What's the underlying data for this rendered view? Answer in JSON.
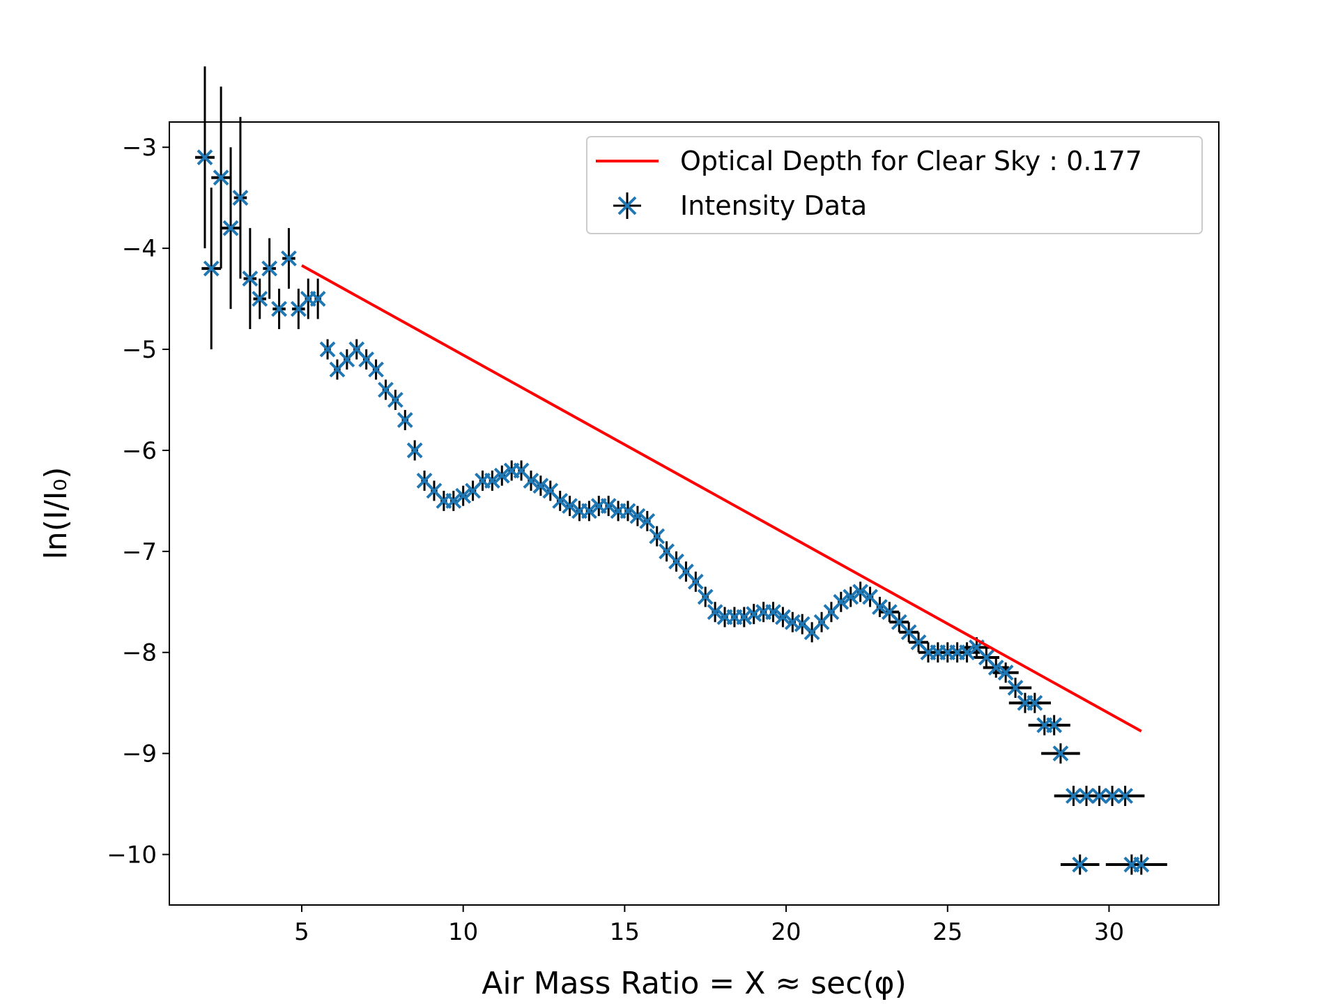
{
  "chart_data": {
    "type": "scatter",
    "title": "",
    "xlabel": "Air Mass Ratio = X ≈ sec(φ)",
    "ylabel": "ln(I/I₀)",
    "xlim": [
      0.9,
      33.4
    ],
    "ylim": [
      -10.5,
      -2.75
    ],
    "x_ticks": [
      5,
      10,
      15,
      20,
      25,
      30
    ],
    "y_ticks": [
      -3,
      -4,
      -5,
      -6,
      -7,
      -8,
      -9,
      -10
    ],
    "x_tick_labels": [
      "5",
      "10",
      "15",
      "20",
      "25",
      "30"
    ],
    "y_tick_labels": [
      "−3",
      "−4",
      "−5",
      "−6",
      "−7",
      "−8",
      "−9",
      "−10"
    ],
    "grid": false,
    "legend_position": "top-right",
    "colors": {
      "fit": "#ff0000",
      "data": "#1f77b4",
      "errorbar": "#000000"
    },
    "series": [
      {
        "name": "Optical Depth for Clear Sky : 0.177",
        "type": "line",
        "x": [
          5.0,
          31.0
        ],
        "y": [
          -4.17,
          -8.78
        ]
      },
      {
        "name": "Intensity Data",
        "type": "scatter_errorbar",
        "marker": "x",
        "points": [
          [
            2.0,
            -3.1,
            0.3,
            0.9
          ],
          [
            2.2,
            -4.2,
            0.3,
            0.8
          ],
          [
            2.5,
            -3.3,
            0.3,
            0.9
          ],
          [
            2.8,
            -3.8,
            0.3,
            0.8
          ],
          [
            3.1,
            -3.5,
            0.2,
            0.8
          ],
          [
            3.4,
            -4.3,
            0.2,
            0.5
          ],
          [
            3.7,
            -4.5,
            0.2,
            0.2
          ],
          [
            4.0,
            -4.2,
            0.2,
            0.3
          ],
          [
            4.3,
            -4.6,
            0.2,
            0.2
          ],
          [
            4.6,
            -4.1,
            0.2,
            0.3
          ],
          [
            4.9,
            -4.6,
            0.2,
            0.2
          ],
          [
            5.2,
            -4.5,
            0.1,
            0.2
          ],
          [
            5.5,
            -4.5,
            0.1,
            0.2
          ],
          [
            5.8,
            -5.0,
            0.1,
            0.1
          ],
          [
            6.1,
            -5.2,
            0.1,
            0.1
          ],
          [
            6.4,
            -5.1,
            0.1,
            0.1
          ],
          [
            6.7,
            -5.0,
            0.1,
            0.1
          ],
          [
            7.0,
            -5.1,
            0.1,
            0.1
          ],
          [
            7.3,
            -5.2,
            0.1,
            0.1
          ],
          [
            7.6,
            -5.4,
            0.1,
            0.1
          ],
          [
            7.9,
            -5.5,
            0.1,
            0.1
          ],
          [
            8.2,
            -5.7,
            0.1,
            0.1
          ],
          [
            8.5,
            -6.0,
            0.1,
            0.1
          ],
          [
            8.8,
            -6.3,
            0.1,
            0.1
          ],
          [
            9.1,
            -6.4,
            0.1,
            0.1
          ],
          [
            9.4,
            -6.5,
            0.1,
            0.1
          ],
          [
            9.7,
            -6.5,
            0.1,
            0.1
          ],
          [
            10.0,
            -6.45,
            0.1,
            0.1
          ],
          [
            10.3,
            -6.4,
            0.1,
            0.1
          ],
          [
            10.6,
            -6.3,
            0.1,
            0.1
          ],
          [
            10.9,
            -6.3,
            0.1,
            0.1
          ],
          [
            11.2,
            -6.25,
            0.1,
            0.1
          ],
          [
            11.5,
            -6.2,
            0.1,
            0.1
          ],
          [
            11.8,
            -6.2,
            0.1,
            0.1
          ],
          [
            12.1,
            -6.3,
            0.1,
            0.1
          ],
          [
            12.4,
            -6.35,
            0.1,
            0.1
          ],
          [
            12.7,
            -6.4,
            0.1,
            0.1
          ],
          [
            13.0,
            -6.5,
            0.1,
            0.1
          ],
          [
            13.3,
            -6.55,
            0.1,
            0.1
          ],
          [
            13.6,
            -6.6,
            0.1,
            0.1
          ],
          [
            13.9,
            -6.6,
            0.1,
            0.1
          ],
          [
            14.2,
            -6.55,
            0.1,
            0.1
          ],
          [
            14.5,
            -6.55,
            0.1,
            0.1
          ],
          [
            14.8,
            -6.6,
            0.1,
            0.1
          ],
          [
            15.1,
            -6.6,
            0.1,
            0.1
          ],
          [
            15.4,
            -6.65,
            0.1,
            0.1
          ],
          [
            15.7,
            -6.7,
            0.1,
            0.1
          ],
          [
            16.0,
            -6.85,
            0.1,
            0.1
          ],
          [
            16.3,
            -7.0,
            0.1,
            0.1
          ],
          [
            16.6,
            -7.1,
            0.1,
            0.1
          ],
          [
            16.9,
            -7.2,
            0.1,
            0.1
          ],
          [
            17.2,
            -7.3,
            0.1,
            0.1
          ],
          [
            17.5,
            -7.45,
            0.1,
            0.1
          ],
          [
            17.8,
            -7.6,
            0.1,
            0.1
          ],
          [
            18.1,
            -7.65,
            0.1,
            0.1
          ],
          [
            18.4,
            -7.65,
            0.1,
            0.1
          ],
          [
            18.7,
            -7.65,
            0.1,
            0.1
          ],
          [
            19.0,
            -7.62,
            0.1,
            0.1
          ],
          [
            19.3,
            -7.6,
            0.1,
            0.1
          ],
          [
            19.6,
            -7.6,
            0.1,
            0.1
          ],
          [
            19.9,
            -7.65,
            0.1,
            0.1
          ],
          [
            20.2,
            -7.7,
            0.1,
            0.1
          ],
          [
            20.5,
            -7.72,
            0.1,
            0.1
          ],
          [
            20.8,
            -7.8,
            0.1,
            0.1
          ],
          [
            21.1,
            -7.7,
            0.1,
            0.1
          ],
          [
            21.4,
            -7.6,
            0.1,
            0.1
          ],
          [
            21.7,
            -7.5,
            0.1,
            0.1
          ],
          [
            22.0,
            -7.45,
            0.1,
            0.1
          ],
          [
            22.3,
            -7.4,
            0.1,
            0.1
          ],
          [
            22.6,
            -7.45,
            0.1,
            0.1
          ],
          [
            22.9,
            -7.55,
            0.1,
            0.1
          ],
          [
            23.2,
            -7.6,
            0.3,
            0.1
          ],
          [
            23.5,
            -7.7,
            0.3,
            0.1
          ],
          [
            23.8,
            -7.8,
            0.3,
            0.1
          ],
          [
            24.1,
            -7.9,
            0.3,
            0.1
          ],
          [
            24.4,
            -8.0,
            0.3,
            0.1
          ],
          [
            24.7,
            -8.0,
            0.4,
            0.1
          ],
          [
            25.0,
            -8.0,
            0.4,
            0.1
          ],
          [
            25.3,
            -8.0,
            0.4,
            0.1
          ],
          [
            25.6,
            -8.0,
            0.4,
            0.1
          ],
          [
            25.9,
            -7.95,
            0.4,
            0.1
          ],
          [
            26.2,
            -8.05,
            0.4,
            0.1
          ],
          [
            26.5,
            -8.15,
            0.4,
            0.1
          ],
          [
            26.8,
            -8.2,
            0.4,
            0.1
          ],
          [
            27.1,
            -8.35,
            0.5,
            0.1
          ],
          [
            27.4,
            -8.5,
            0.5,
            0.1
          ],
          [
            27.7,
            -8.5,
            0.5,
            0.1
          ],
          [
            28.0,
            -8.72,
            0.5,
            0.1
          ],
          [
            28.3,
            -8.72,
            0.5,
            0.1
          ],
          [
            28.5,
            -9.0,
            0.6,
            0.1
          ],
          [
            28.9,
            -9.42,
            0.6,
            0.1
          ],
          [
            29.3,
            -9.42,
            0.6,
            0.1
          ],
          [
            29.7,
            -9.42,
            0.6,
            0.1
          ],
          [
            30.1,
            -9.42,
            0.6,
            0.1
          ],
          [
            30.5,
            -9.42,
            0.6,
            0.1
          ],
          [
            29.1,
            -10.1,
            0.6,
            0.1
          ],
          [
            30.7,
            -10.1,
            0.8,
            0.1
          ],
          [
            31.0,
            -10.1,
            0.8,
            0.1
          ]
        ]
      }
    ]
  }
}
